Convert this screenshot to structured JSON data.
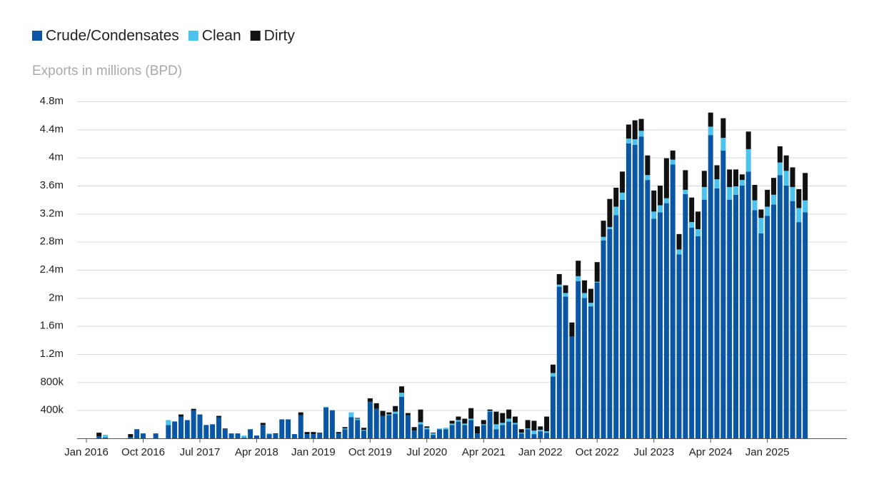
{
  "chart_data": {
    "type": "stacked_bar",
    "y_axis_label": "Exports in millions (BPD)",
    "categories": [
      "Jan 2016",
      null,
      null,
      null,
      null,
      null,
      null,
      null,
      null,
      "Oct 2016",
      null,
      null,
      null,
      null,
      null,
      null,
      null,
      null,
      "Jul 2017",
      null,
      null,
      null,
      null,
      null,
      null,
      null,
      null,
      "Apr 2018",
      null,
      null,
      null,
      null,
      null,
      null,
      null,
      null,
      "Jan 2019",
      null,
      null,
      null,
      null,
      null,
      null,
      null,
      null,
      "Oct 2019",
      null,
      null,
      null,
      null,
      null,
      null,
      null,
      null,
      "Jul 2020",
      null,
      null,
      null,
      null,
      null,
      null,
      null,
      null,
      "Apr 2021",
      null,
      null,
      null,
      null,
      null,
      null,
      null,
      null,
      "Jan 2022",
      null,
      null,
      null,
      null,
      null,
      null,
      null,
      null,
      "Oct 2022",
      null,
      null,
      null,
      null,
      null,
      null,
      null,
      null,
      "Jul 2023",
      null,
      null,
      null,
      null,
      null,
      null,
      null,
      null,
      "Apr 2024",
      null,
      null,
      null,
      null,
      null,
      null,
      null,
      null,
      "Jan 2025",
      null,
      null,
      null,
      null,
      null,
      null
    ],
    "series": [
      {
        "name": "Crude/Condensates",
        "color": "#0b56a4",
        "values": [
          0,
          0,
          0.03,
          0.01,
          0,
          0,
          0,
          0.02,
          0.13,
          0.07,
          0,
          0.07,
          0,
          0.19,
          0.24,
          0.31,
          0.26,
          0.4,
          0.34,
          0.19,
          0.2,
          0.3,
          0.13,
          0.07,
          0.07,
          0.01,
          0.13,
          0.04,
          0.19,
          0.06,
          0.06,
          0.27,
          0.27,
          0.06,
          0.33,
          0.06,
          0.06,
          0.07,
          0.44,
          0.4,
          0.07,
          0.13,
          0.3,
          0.26,
          0.11,
          0.52,
          0.42,
          0.32,
          0.33,
          0.35,
          0.59,
          0.33,
          0.11,
          0.2,
          0.13,
          0.05,
          0.13,
          0.13,
          0.19,
          0.24,
          0.19,
          0.26,
          0.07,
          0.19,
          0.38,
          0.13,
          0.19,
          0.24,
          0.2,
          0.07,
          0.13,
          0.06,
          0.1,
          0.08,
          0.88,
          2.16,
          2.02,
          1.45,
          2.24,
          2.0,
          1.88,
          2.22,
          2.82,
          2.98,
          3.18,
          3.4,
          4.2,
          4.18,
          4.3,
          3.68,
          3.13,
          3.22,
          3.35,
          3.9,
          2.62,
          3.48,
          3.0,
          2.88,
          3.4,
          4.32,
          3.56,
          4.1,
          3.4,
          3.47,
          3.6,
          3.8,
          3.25,
          2.92,
          3.17,
          3.33,
          3.75,
          3.6,
          3.38,
          3.08,
          3.22
        ]
      },
      {
        "name": "Clean",
        "color": "#4cc3ef",
        "values": [
          0,
          0,
          0,
          0.04,
          0,
          0,
          0,
          0,
          0,
          0,
          0,
          0,
          0,
          0.07,
          0,
          0,
          0,
          0,
          0,
          0,
          0,
          0,
          0,
          0,
          0,
          0.03,
          0,
          0,
          0,
          0.01,
          0,
          0,
          0,
          0,
          0,
          0,
          0,
          0,
          0.01,
          0,
          0,
          0.01,
          0.07,
          0.02,
          0.01,
          0,
          0,
          0,
          0.01,
          0.03,
          0.06,
          0,
          0,
          0.03,
          0.02,
          0.02,
          0.01,
          0.02,
          0.02,
          0.02,
          0.02,
          0.02,
          0,
          0.01,
          0.01,
          0.07,
          0.03,
          0.04,
          0.02,
          0.01,
          0.01,
          0.05,
          0.02,
          0.02,
          0.05,
          0.03,
          0.05,
          0,
          0.07,
          0.07,
          0.05,
          0.01,
          0.05,
          0.03,
          0.12,
          0.1,
          0.07,
          0.08,
          0.08,
          0.07,
          0.1,
          0.1,
          0.07,
          0.07,
          0.07,
          0.06,
          0.08,
          0.1,
          0.18,
          0.12,
          0.13,
          0.18,
          0.18,
          0.12,
          0.08,
          0.32,
          0.14,
          0.22,
          0.13,
          0.14,
          0.18,
          0.21,
          0.2,
          0.2,
          0.17
        ]
      },
      {
        "name": "Dirty",
        "color": "#111111",
        "values": [
          0,
          0,
          0.05,
          0,
          0,
          0,
          0,
          0.04,
          0,
          0,
          0,
          0,
          0,
          0,
          0,
          0.03,
          0,
          0.02,
          0,
          0,
          0,
          0.02,
          0.01,
          0,
          0,
          0,
          0,
          0,
          0.03,
          0,
          0.01,
          0,
          0,
          0,
          0.04,
          0.03,
          0.03,
          0.01,
          0,
          0,
          0.02,
          0.02,
          0,
          0.01,
          0.03,
          0.05,
          0.08,
          0.07,
          0.03,
          0.08,
          0.09,
          0.03,
          0.05,
          0.18,
          0.02,
          0.01,
          0,
          0,
          0.04,
          0.05,
          0.07,
          0.15,
          0.1,
          0.06,
          0.02,
          0.18,
          0.14,
          0.13,
          0.09,
          0.05,
          0.12,
          0.14,
          0.05,
          0.21,
          0.12,
          0.15,
          0.11,
          0.2,
          0.22,
          0.18,
          0.2,
          0.28,
          0.23,
          0.4,
          0.27,
          0.3,
          0.2,
          0.27,
          0.17,
          0.28,
          0.3,
          0.28,
          0.57,
          0.13,
          0.22,
          0.28,
          0.35,
          0.25,
          0.23,
          0.2,
          0.2,
          0.28,
          0.25,
          0.24,
          0.08,
          0.25,
          0.22,
          0.12,
          0.24,
          0.24,
          0.23,
          0.22,
          0.28,
          0.27,
          0.39
        ]
      }
    ],
    "ylim": [
      0,
      4.8
    ],
    "yticks": [
      {
        "value": 0.4,
        "label": "400k"
      },
      {
        "value": 0.8,
        "label": "800k"
      },
      {
        "value": 1.2,
        "label": "1.2m"
      },
      {
        "value": 1.6,
        "label": "1.6m"
      },
      {
        "value": 2,
        "label": "2m"
      },
      {
        "value": 2.4,
        "label": "2.4m"
      },
      {
        "value": 2.8,
        "label": "2.8m"
      },
      {
        "value": 3.2,
        "label": "3.2m"
      },
      {
        "value": 3.6,
        "label": "3.6m"
      },
      {
        "value": 4,
        "label": "4m"
      },
      {
        "value": 4.4,
        "label": "4.4m"
      },
      {
        "value": 4.8,
        "label": "4.8m"
      }
    ],
    "grid": true,
    "legend": "top-left"
  }
}
